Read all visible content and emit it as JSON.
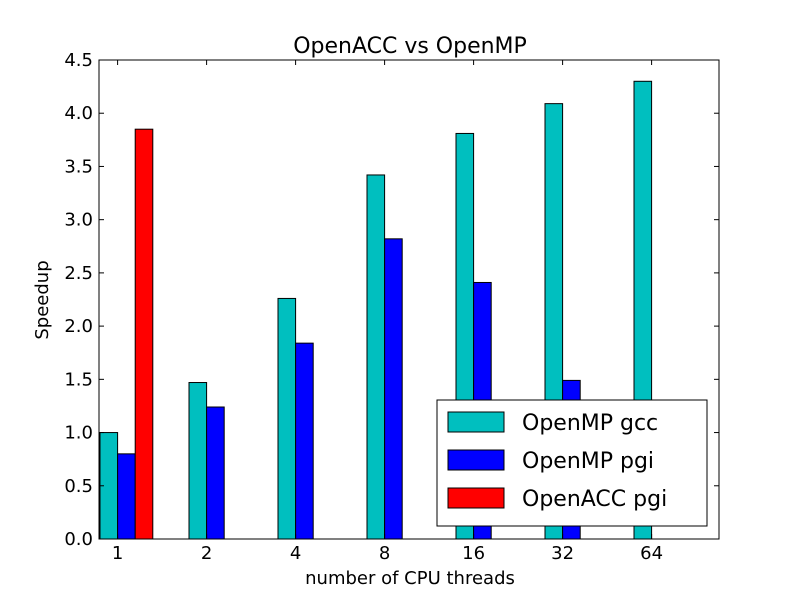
{
  "chart_data": {
    "type": "bar",
    "title": "OpenACC vs OpenMP",
    "xlabel": "number of CPU threads",
    "ylabel": "Speedup",
    "categories": [
      "1",
      "2",
      "4",
      "8",
      "16",
      "32",
      "64"
    ],
    "ylim": [
      0,
      4.5
    ],
    "yticks": [
      "0.0",
      "0.5",
      "1.0",
      "1.5",
      "2.0",
      "2.5",
      "3.0",
      "3.5",
      "4.0",
      "4.5"
    ],
    "grid": false,
    "legend_position": "lower-right",
    "series": [
      {
        "name": "OpenMP gcc",
        "color": "#00bfbf",
        "values": [
          1.0,
          1.47,
          2.26,
          3.42,
          3.81,
          4.09,
          4.3
        ]
      },
      {
        "name": "OpenMP pgi",
        "color": "#0000ff",
        "values": [
          0.8,
          1.24,
          1.84,
          2.82,
          2.41,
          1.49,
          null
        ]
      },
      {
        "name": "OpenACC pgi",
        "color": "#ff0000",
        "values": [
          3.85,
          null,
          null,
          null,
          null,
          null,
          null
        ]
      }
    ]
  }
}
